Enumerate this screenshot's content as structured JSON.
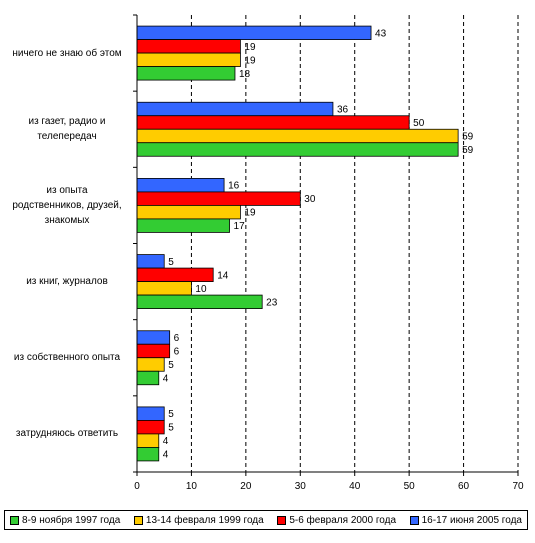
{
  "chart_data": {
    "type": "bar",
    "orientation": "horizontal",
    "categories": [
      [
        "ничего не знаю об этом"
      ],
      [
        "из газет, радио и",
        "телепередач"
      ],
      [
        "из опыта",
        "родственников, друзей,",
        "знакомых"
      ],
      [
        "из книг, журналов"
      ],
      [
        "из собственного опыта"
      ],
      [
        "затрудняюсь ответить"
      ]
    ],
    "series": [
      {
        "name": "8-9 ноября 1997 года",
        "color": "#33cc33",
        "values": [
          18,
          59,
          17,
          23,
          4,
          4
        ]
      },
      {
        "name": "13-14 февраля 1999 года",
        "color": "#ffcc00",
        "values": [
          19,
          59,
          19,
          10,
          5,
          4
        ]
      },
      {
        "name": "5-6 февраля 2000 года",
        "color": "#ff0000",
        "values": [
          19,
          50,
          30,
          14,
          6,
          5
        ]
      },
      {
        "name": "16-17 июня 2005 года",
        "color": "#3366ff",
        "values": [
          43,
          36,
          16,
          5,
          6,
          5
        ]
      }
    ],
    "xlim": [
      0,
      70
    ],
    "xticks": [
      0,
      10,
      20,
      30,
      40,
      50,
      60,
      70
    ],
    "grid": "vertical dashed",
    "legend_position": "bottom"
  }
}
